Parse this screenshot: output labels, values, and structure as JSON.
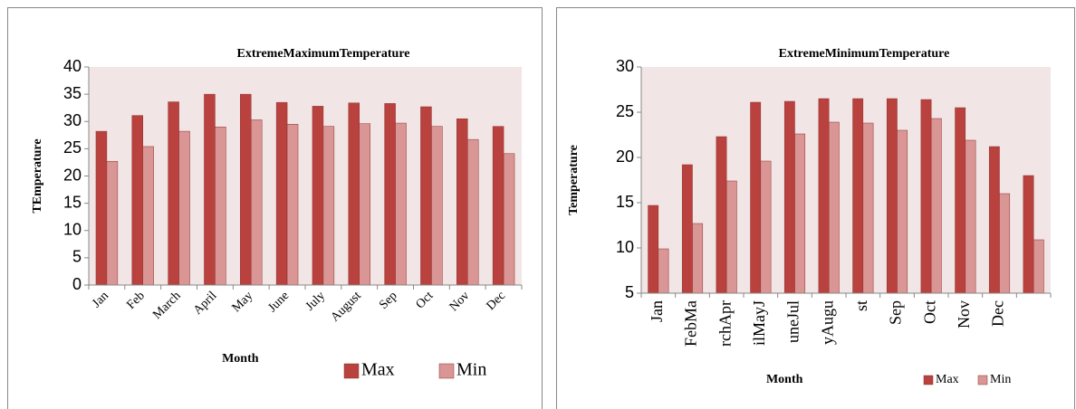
{
  "chart_data": [
    {
      "type": "bar",
      "title": "ExtremeMaximumTemperature",
      "x_label": "Month",
      "y_label": "TEmperature",
      "categories": [
        "Jan",
        "Feb",
        "March",
        "April",
        "May",
        "June",
        "July",
        "August",
        "Sep",
        "Oct",
        "Nov",
        "Dec"
      ],
      "series": [
        {
          "name": "Max",
          "color": "#b9413e",
          "values": [
            28.2,
            31.1,
            33.6,
            35,
            35,
            33.5,
            32.8,
            33.4,
            33.3,
            32.7,
            30.5,
            29.1
          ]
        },
        {
          "name": "Min",
          "color": "#d99694",
          "values": [
            22.7,
            25.4,
            28.2,
            29,
            30.3,
            29.5,
            29.1,
            29.6,
            29.7,
            29.1,
            26.7,
            24.1
          ]
        }
      ],
      "ylim": [
        0,
        40
      ],
      "yticks": [
        0,
        5,
        10,
        15,
        20,
        25,
        30,
        35,
        40
      ],
      "label_rotation": -45
    },
    {
      "type": "bar",
      "title": "ExtremeMinimumTemperature",
      "x_label": "Month",
      "y_label": "Temperature",
      "categories": [
        "Jan",
        "FebMa",
        "rchApr",
        "ilMayJ",
        "uneJul",
        "yAugu",
        "st",
        "Sep",
        "Oct",
        "Nov",
        "Dec",
        null
      ],
      "series": [
        {
          "name": "Max",
          "color": "#b9413e",
          "values": [
            14.7,
            19.2,
            22.3,
            26.1,
            26.2,
            26.5,
            26.5,
            26.5,
            26.4,
            25.5,
            21.2,
            18.0
          ]
        },
        {
          "name": "Min",
          "color": "#d99694",
          "values": [
            9.9,
            12.7,
            17.4,
            19.6,
            22.6,
            23.9,
            23.8,
            23.0,
            24.3,
            21.9,
            16.0,
            10.9
          ]
        }
      ],
      "ylim": [
        5,
        30
      ],
      "yticks": [
        5,
        10,
        15,
        20,
        25,
        30
      ],
      "label_rotation": -90
    }
  ]
}
